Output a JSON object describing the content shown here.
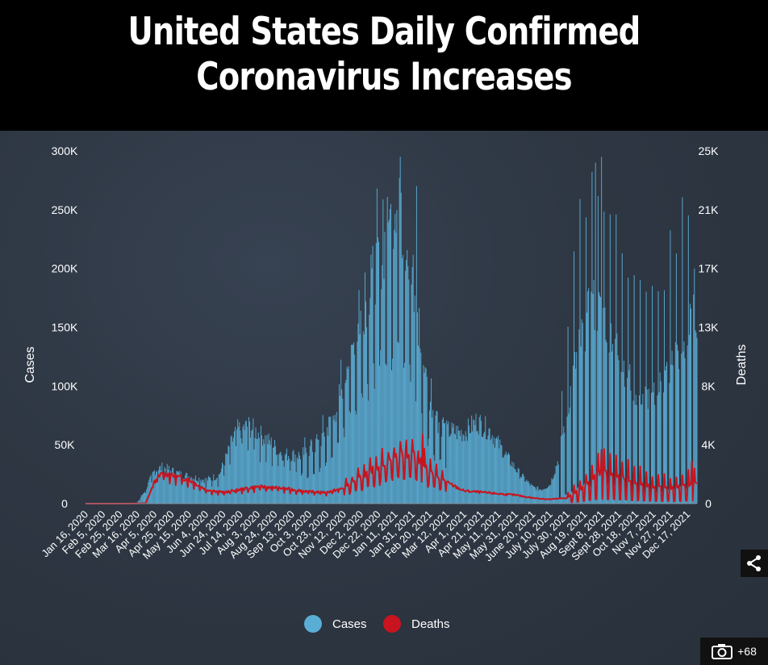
{
  "title": {
    "line1": "United States Daily Confirmed",
    "line2": "Coronavirus Increases"
  },
  "photo_count": "+68",
  "icons": {
    "share": "share-icon",
    "camera": "camera-icon"
  },
  "colors": {
    "cases": "#5aaed6",
    "deaths": "#c8141e",
    "background": "#2b3340"
  },
  "chart_data": {
    "type": "bar",
    "title": "United States Daily Confirmed Coronavirus Increases",
    "left_axis": {
      "label": "Cases",
      "range": [
        0,
        300000
      ],
      "ticks": [
        {
          "value": 0,
          "label": "0"
        },
        {
          "value": 50000,
          "label": "50K"
        },
        {
          "value": 100000,
          "label": "100K"
        },
        {
          "value": 150000,
          "label": "150K"
        },
        {
          "value": 200000,
          "label": "200K"
        },
        {
          "value": 250000,
          "label": "250K"
        },
        {
          "value": 300000,
          "label": "300K"
        }
      ]
    },
    "right_axis": {
      "label": "Deaths",
      "range": [
        0,
        25000
      ],
      "ticks": [
        {
          "value": 0,
          "label": "0"
        },
        {
          "value": 4166,
          "label": "4K"
        },
        {
          "value": 8333,
          "label": "8K"
        },
        {
          "value": 12500,
          "label": "13K"
        },
        {
          "value": 16667,
          "label": "17K"
        },
        {
          "value": 20833,
          "label": "21K"
        },
        {
          "value": 25000,
          "label": "25K"
        }
      ]
    },
    "x_day_range": [
      0,
      711
    ],
    "x_ticks": [
      {
        "day": 0,
        "label": "Jan 16, 2020"
      },
      {
        "day": 20,
        "label": "Feb 5, 2020"
      },
      {
        "day": 40,
        "label": "Feb 25, 2020"
      },
      {
        "day": 60,
        "label": "Mar 16, 2020"
      },
      {
        "day": 80,
        "label": "Apr 5, 2020"
      },
      {
        "day": 100,
        "label": "Apr 25, 2020"
      },
      {
        "day": 120,
        "label": "May 15, 2020"
      },
      {
        "day": 140,
        "label": "Jun 4, 2020"
      },
      {
        "day": 160,
        "label": "Jun 24, 2020"
      },
      {
        "day": 180,
        "label": "Jul 14, 2020"
      },
      {
        "day": 200,
        "label": "Aug 3, 2020"
      },
      {
        "day": 220,
        "label": "Aug 24, 2020"
      },
      {
        "day": 240,
        "label": "Sep 13, 2020"
      },
      {
        "day": 260,
        "label": "Oct 3, 2020"
      },
      {
        "day": 280,
        "label": "Oct 23, 2020"
      },
      {
        "day": 300,
        "label": "Nov 12, 2020"
      },
      {
        "day": 320,
        "label": "Dec 2, 2020"
      },
      {
        "day": 340,
        "label": "Dec 22, 2020"
      },
      {
        "day": 360,
        "label": "Jan 11, 2021"
      },
      {
        "day": 380,
        "label": "Jan 31, 2021"
      },
      {
        "day": 400,
        "label": "Feb 20, 2021"
      },
      {
        "day": 420,
        "label": "Mar 12, 2021"
      },
      {
        "day": 440,
        "label": "Apr 1, 2021"
      },
      {
        "day": 460,
        "label": "Apr 21, 2021"
      },
      {
        "day": 480,
        "label": "May 11, 2021"
      },
      {
        "day": 500,
        "label": "May 31, 2021"
      },
      {
        "day": 520,
        "label": "June 20, 2021"
      },
      {
        "day": 540,
        "label": "July 10, 2021"
      },
      {
        "day": 560,
        "label": "July 30, 2021"
      },
      {
        "day": 580,
        "label": "Aug 19, 2021"
      },
      {
        "day": 600,
        "label": "Sept 8, 2021"
      },
      {
        "day": 620,
        "label": "Sept 28, 2021"
      },
      {
        "day": 640,
        "label": "Oct 18, 2021"
      },
      {
        "day": 660,
        "label": "Nov 7, 2021"
      },
      {
        "day": 680,
        "label": "Nov 27, 2021"
      },
      {
        "day": 700,
        "label": "Dec 17, 2021"
      }
    ],
    "series": [
      {
        "name": "Cases",
        "axis": "left",
        "mark": "bar",
        "color": "#5aaed6",
        "approx_daily_trend": {
          "days": [
            0,
            40,
            60,
            70,
            80,
            90,
            110,
            140,
            155,
            165,
            175,
            190,
            210,
            230,
            250,
            270,
            290,
            305,
            320,
            335,
            345,
            355,
            362,
            370,
            380,
            390,
            400,
            410,
            420,
            440,
            455,
            470,
            490,
            505,
            520,
            530,
            540,
            550,
            560,
            570,
            580,
            590,
            600,
            610,
            625,
            640,
            660,
            675,
            690,
            700,
            705,
            711
          ],
          "values": [
            0,
            20,
            800,
            12000,
            28000,
            31000,
            25000,
            20000,
            24000,
            42000,
            62000,
            66000,
            55000,
            42000,
            41000,
            50000,
            75000,
            120000,
            160000,
            195000,
            215000,
            240000,
            250000,
            235000,
            180000,
            130000,
            90000,
            70000,
            62000,
            60000,
            70000,
            62000,
            40000,
            25000,
            14000,
            12000,
            16000,
            38000,
            80000,
            120000,
            150000,
            170000,
            160000,
            150000,
            120000,
            95000,
            90000,
            110000,
            130000,
            135000,
            160000,
            165000
          ]
        },
        "peaks": [
          {
            "day": 366,
            "value": 295000
          },
          {
            "day": 385,
            "value": 270000
          },
          {
            "day": 593,
            "value": 290000
          },
          {
            "day": 600,
            "value": 295000
          },
          {
            "day": 708,
            "value": 200000
          }
        ]
      },
      {
        "name": "Deaths",
        "axis": "right",
        "mark": "line",
        "color": "#c8141e",
        "approx_daily_trend": {
          "days": [
            0,
            50,
            70,
            80,
            90,
            100,
            120,
            140,
            160,
            180,
            200,
            220,
            240,
            260,
            280,
            300,
            320,
            340,
            360,
            370,
            380,
            390,
            400,
            420,
            440,
            460,
            480,
            500,
            520,
            540,
            560,
            580,
            590,
            600,
            620,
            640,
            660,
            680,
            700,
            711
          ],
          "values": [
            0,
            0,
            30,
            1500,
            2200,
            2000,
            1700,
            1000,
            800,
            1000,
            1200,
            1150,
            1000,
            850,
            800,
            1100,
            1800,
            2500,
            3200,
            3400,
            3300,
            2900,
            2200,
            1500,
            900,
            800,
            700,
            600,
            400,
            300,
            400,
            1200,
            1800,
            2300,
            1900,
            1500,
            1200,
            1100,
            1300,
            1500
          ]
        },
        "peaks": [
          {
            "day": 392,
            "value": 4900
          },
          {
            "day": 600,
            "value": 3800
          },
          {
            "day": 705,
            "value": 3000
          }
        ]
      }
    ],
    "legend": {
      "position": "bottom-center",
      "items": [
        {
          "label": "Cases",
          "color": "#5aaed6"
        },
        {
          "label": "Deaths",
          "color": "#c8141e"
        }
      ]
    }
  }
}
